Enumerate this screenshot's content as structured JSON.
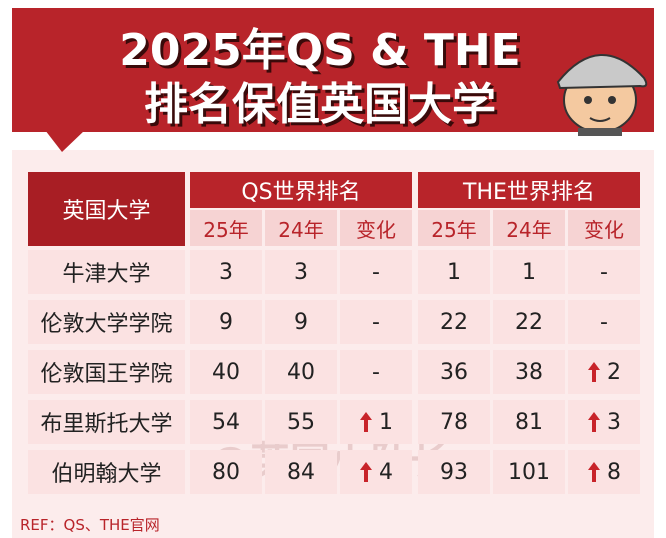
{
  "header": {
    "title_line1": "2025年QS & THE",
    "title_line2": "排名保值英国大学"
  },
  "table": {
    "corner": "英国大学",
    "groups": [
      "QS世界排名",
      "THE世界排名"
    ],
    "subheaders": [
      "25年",
      "24年",
      "变化",
      "25年",
      "24年",
      "变化"
    ],
    "rows": [
      [
        "牛津大学",
        3,
        3,
        "-",
        1,
        1,
        "-"
      ],
      [
        "伦敦大学学院",
        9,
        9,
        "-",
        22,
        22,
        "-"
      ],
      [
        "伦敦国王学院",
        40,
        40,
        "-",
        36,
        38,
        2
      ],
      [
        "布里斯托大学",
        54,
        55,
        1,
        78,
        81,
        3
      ],
      [
        "伯明翰大学",
        80,
        84,
        4,
        93,
        101,
        8
      ]
    ]
  },
  "watermark": "@英国小队长",
  "footer": "REF：QS、THE官网"
}
